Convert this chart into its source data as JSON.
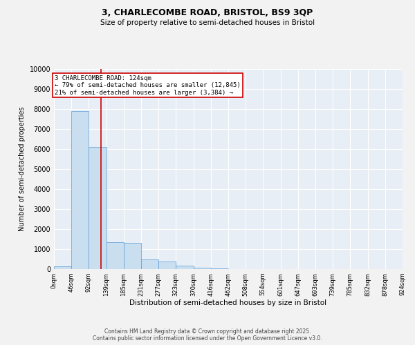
{
  "title_line1": "3, CHARLECOMBE ROAD, BRISTOL, BS9 3QP",
  "title_line2": "Size of property relative to semi-detached houses in Bristol",
  "xlabel": "Distribution of semi-detached houses by size in Bristol",
  "ylabel": "Number of semi-detached properties",
  "bins": [
    "0sqm",
    "46sqm",
    "92sqm",
    "139sqm",
    "185sqm",
    "231sqm",
    "277sqm",
    "323sqm",
    "370sqm",
    "416sqm",
    "462sqm",
    "508sqm",
    "554sqm",
    "601sqm",
    "647sqm",
    "693sqm",
    "739sqm",
    "785sqm",
    "832sqm",
    "878sqm",
    "924sqm"
  ],
  "bin_edges": [
    0,
    46,
    92,
    139,
    185,
    231,
    277,
    323,
    370,
    416,
    462,
    508,
    554,
    601,
    647,
    693,
    739,
    785,
    832,
    878,
    924
  ],
  "counts": [
    150,
    7900,
    6100,
    1350,
    1300,
    480,
    380,
    180,
    80,
    40,
    10,
    5,
    2,
    1,
    1,
    0,
    0,
    0,
    0,
    0
  ],
  "bar_color": "#c9dff0",
  "bar_edge_color": "#5b9bd5",
  "bg_color": "#e8eef5",
  "grid_color": "#ffffff",
  "property_line_x": 124,
  "property_line_color": "#cc0000",
  "annotation_line1": "3 CHARLECOMBE ROAD: 124sqm",
  "annotation_line2": "← 79% of semi-detached houses are smaller (12,845)",
  "annotation_line3": "21% of semi-detached houses are larger (3,384) →",
  "annotation_box_color": "#cc0000",
  "ylim": [
    0,
    10000
  ],
  "yticks": [
    0,
    1000,
    2000,
    3000,
    4000,
    5000,
    6000,
    7000,
    8000,
    9000,
    10000
  ],
  "footer_line1": "Contains HM Land Registry data © Crown copyright and database right 2025.",
  "footer_line2": "Contains public sector information licensed under the Open Government Licence v3.0.",
  "fig_width": 6.0,
  "fig_height": 5.0,
  "dpi": 100
}
